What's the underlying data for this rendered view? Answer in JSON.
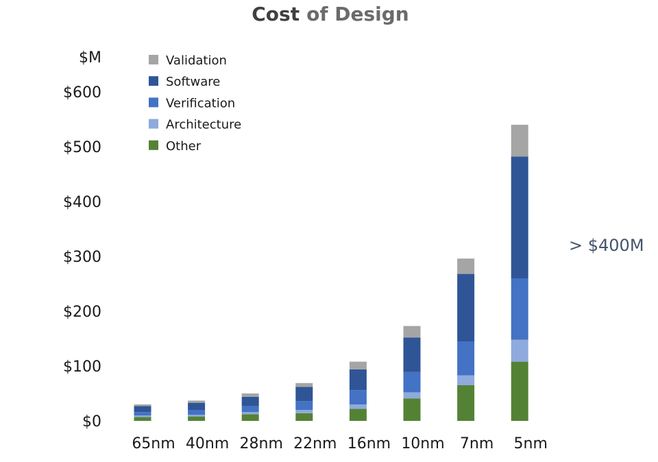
{
  "chart_data": {
    "type": "bar",
    "stacked": true,
    "title_part1": "Cost",
    "title_part2": "of Design",
    "ylabel": "$M",
    "ylim": [
      0,
      600
    ],
    "yticks": [
      {
        "value": 0,
        "label": "$0"
      },
      {
        "value": 100,
        "label": "$100"
      },
      {
        "value": 200,
        "label": "$200"
      },
      {
        "value": 300,
        "label": "$300"
      },
      {
        "value": 400,
        "label": "$400"
      },
      {
        "value": 500,
        "label": "$500"
      },
      {
        "value": 600,
        "label": "$600"
      }
    ],
    "categories": [
      "65nm",
      "40nm",
      "28nm",
      "22nm",
      "16nm",
      "10nm",
      "7nm",
      "5nm"
    ],
    "series": [
      {
        "name": "Other",
        "color": "#548235",
        "values": [
          7,
          8,
          12,
          14,
          22,
          41,
          65,
          108
        ]
      },
      {
        "name": "Architecture",
        "color": "#8faadc",
        "values": [
          3,
          3,
          4,
          6,
          8,
          11,
          18,
          40
        ]
      },
      {
        "name": "Verification",
        "color": "#4472c4",
        "values": [
          6,
          9,
          11,
          16,
          26,
          37,
          62,
          112
        ]
      },
      {
        "name": "Software",
        "color": "#2f5597",
        "values": [
          11,
          13,
          17,
          26,
          38,
          63,
          123,
          222
        ]
      },
      {
        "name": "Validation",
        "color": "#a5a5a5",
        "values": [
          3,
          4,
          6,
          7,
          14,
          21,
          28,
          58
        ]
      }
    ],
    "legend": {
      "placement": "top-left",
      "order": [
        "Validation",
        "Software",
        "Verification",
        "Architecture",
        "Other"
      ]
    },
    "annotation": "> $400M"
  }
}
